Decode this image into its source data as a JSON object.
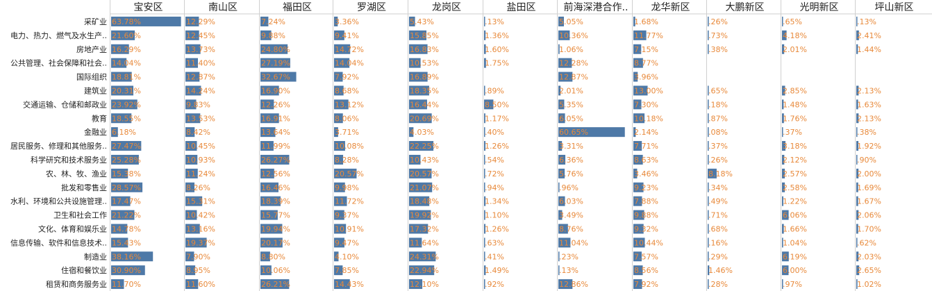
{
  "colors": {
    "bar": "#4E79A7",
    "label": "#E8893A",
    "divider": "#cfcfcf",
    "text": "#222222"
  },
  "chart_data": {
    "type": "bar",
    "orientation": "horizontal",
    "layout": "small-multiples table",
    "value_format": "percent",
    "columns": [
      "宝安区",
      "南山区",
      "福田区",
      "罗湖区",
      "龙岗区",
      "盐田区",
      "前海深港合作..",
      "龙华新区",
      "大鹏新区",
      "光明新区",
      "坪山新区"
    ],
    "categories": [
      "采矿业",
      "电力、热力、燃气及水生产..",
      "房地产业",
      "公共管理、社会保障和社会..",
      "国际组织",
      "建筑业",
      "交通运输、仓储和邮政业",
      "教育",
      "金融业",
      "居民服务、修理和其他服务..",
      "科学研究和技术服务业",
      "农、林、牧、渔业",
      "批发和零售业",
      "水利、环境和公共设施管理..",
      "卫生和社会工作",
      "文化、体育和娱乐业",
      "信息传输、软件和信息技术..",
      "制造业",
      "住宿和餐饮业",
      "租赁和商务服务业"
    ],
    "columns_data": [
      [
        63.78,
        21.6,
        16.29,
        14.04,
        18.81,
        20.31,
        23.92,
        18.55,
        6.18,
        27.47,
        25.28,
        15.38,
        28.57,
        17.47,
        21.22,
        14.78,
        15.43,
        38.16,
        30.9,
        11.7
      ],
      [
        12.29,
        12.45,
        13.73,
        11.4,
        12.87,
        14.24,
        9.83,
        13.53,
        8.42,
        10.45,
        10.93,
        11.24,
        8.26,
        15.31,
        10.42,
        13.16,
        19.37,
        7.9,
        8.95,
        11.6
      ],
      [
        7.24,
        9.88,
        24.8,
        27.19,
        32.67,
        16.9,
        12.26,
        16.91,
        13.64,
        11.99,
        26.27,
        12.56,
        16.46,
        18.39,
        15.77,
        19.94,
        20.17,
        8.8,
        10.06,
        26.21
      ],
      [
        3.36,
        9.41,
        14.72,
        14.04,
        7.92,
        8.68,
        13.12,
        8.06,
        3.71,
        10.08,
        8.28,
        20.57,
        9.98,
        11.72,
        9.37,
        10.91,
        9.47,
        4.1,
        7.85,
        14.43
      ],
      [
        5.43,
        15.85,
        16.83,
        10.53,
        16.89,
        18.35,
        16.44,
        20.69,
        4.03,
        22.25,
        10.43,
        20.57,
        21.07,
        18.48,
        19.92,
        17.32,
        11.64,
        24.31,
        22.94,
        12.1
      ],
      [
        0.13,
        1.36,
        1.6,
        1.75,
        null,
        0.89,
        8.5,
        1.17,
        0.4,
        1.26,
        0.54,
        0.72,
        0.94,
        1.34,
        1.1,
        1.26,
        0.63,
        0.41,
        1.49,
        0.92
      ],
      [
        5.05,
        10.36,
        1.06,
        12.28,
        12.87,
        2.01,
        5.35,
        6.05,
        60.65,
        3.31,
        6.36,
        5.76,
        0.96,
        6.03,
        3.49,
        8.76,
        11.04,
        0.23,
        0.13,
        12.86
      ],
      [
        1.68,
        11.77,
        7.15,
        8.77,
        3.96,
        13.0,
        7.3,
        10.18,
        2.14,
        7.71,
        8.63,
        3.46,
        9.23,
        7.88,
        9.88,
        9.32,
        10.44,
        7.57,
        8.56,
        7.92
      ],
      [
        0.26,
        0.73,
        0.38,
        null,
        null,
        0.65,
        0.18,
        0.87,
        0.08,
        0.37,
        0.26,
        8.18,
        0.34,
        0.49,
        0.71,
        0.68,
        0.16,
        0.29,
        1.46,
        0.28
      ],
      [
        0.65,
        4.18,
        2.01,
        null,
        null,
        2.85,
        1.48,
        1.76,
        0.37,
        3.18,
        2.12,
        2.57,
        2.58,
        1.22,
        6.06,
        1.66,
        1.04,
        6.19,
        6.0,
        0.97
      ],
      [
        0.13,
        2.41,
        1.44,
        null,
        null,
        2.13,
        1.63,
        2.13,
        0.38,
        1.92,
        0.9,
        2.0,
        1.69,
        1.67,
        2.06,
        1.7,
        0.62,
        2.03,
        2.65,
        1.02
      ]
    ],
    "value_labels": [
      [
        "63.78%",
        "21.60%",
        "16.29%",
        "14.04%",
        "18.81%",
        "20.31%",
        "23.92%",
        "18.55%",
        "6.18%",
        "27.47%",
        "25.28%",
        "15.38%",
        "28.57%",
        "17.47%",
        "21.22%",
        "14.78%",
        "15.43%",
        "38.16%",
        "30.90%",
        "11.70%"
      ],
      [
        "12.29%",
        "12.45%",
        "13.73%",
        "11.40%",
        "12.87%",
        "14.24%",
        "9.83%",
        "13.53%",
        "8.42%",
        "10.45%",
        "10.93%",
        "11.24%",
        "8.26%",
        "15.31%",
        "10.42%",
        "13.16%",
        "19.37%",
        "7.90%",
        "8.95%",
        "11.60%"
      ],
      [
        "7.24%",
        "9.88%",
        "24.80%",
        "27.19%",
        "32.67%",
        "16.90%",
        "12.26%",
        "16.91%",
        "13.64%",
        "11.99%",
        "26.27%",
        "12.56%",
        "16.46%",
        "18.39%",
        "15.77%",
        "19.94%",
        "20.17%",
        "8.80%",
        "10.06%",
        "26.21%"
      ],
      [
        "3.36%",
        "9.41%",
        "14.72%",
        "14.04%",
        "7.92%",
        "8.68%",
        "13.12%",
        "8.06%",
        "3.71%",
        "10.08%",
        "8.28%",
        "20.57%",
        "9.98%",
        "11.72%",
        "9.37%",
        "10.91%",
        "9.47%",
        "4.10%",
        "7.85%",
        "14.43%"
      ],
      [
        "5.43%",
        "15.85%",
        "16.83%",
        "10.53%",
        "16.89%",
        "18.35%",
        "16.44%",
        "20.69%",
        "4.03%",
        "22.25%",
        "10.43%",
        "20.57%",
        "21.07%",
        "18.48%",
        "19.92%",
        "17.32%",
        "11.64%",
        "24.31%",
        "22.94%",
        "12.10%"
      ],
      [
        ".13%",
        "1.36%",
        "1.60%",
        "1.75%",
        "",
        ".89%",
        "8.50%",
        "1.17%",
        ".40%",
        "1.26%",
        ".54%",
        ".72%",
        ".94%",
        "1.34%",
        "1.10%",
        "1.26%",
        ".63%",
        ".41%",
        "1.49%",
        ".92%"
      ],
      [
        "5.05%",
        "10.36%",
        "1.06%",
        "12.28%",
        "12.87%",
        "2.01%",
        "5.35%",
        "6.05%",
        "60.65%",
        "3.31%",
        "6.36%",
        "5.76%",
        ".96%",
        "6.03%",
        "3.49%",
        "8.76%",
        "11.04%",
        ".23%",
        ".13%",
        "12.86%"
      ],
      [
        "1.68%",
        "11.77%",
        "7.15%",
        "8.77%",
        "3.96%",
        "13.00%",
        "7.30%",
        "10.18%",
        "2.14%",
        "7.71%",
        "8.63%",
        "3.46%",
        "9.23%",
        "7.88%",
        "9.88%",
        "9.32%",
        "10.44%",
        "7.57%",
        "8.56%",
        "7.92%"
      ],
      [
        ".26%",
        ".73%",
        ".38%",
        "",
        "",
        ".65%",
        ".18%",
        ".87%",
        ".08%",
        ".37%",
        ".26%",
        "8.18%",
        ".34%",
        ".49%",
        ".71%",
        ".68%",
        ".16%",
        ".29%",
        "1.46%",
        ".28%"
      ],
      [
        ".65%",
        "4.18%",
        "2.01%",
        "",
        "",
        "2.85%",
        "1.48%",
        "1.76%",
        ".37%",
        "3.18%",
        "2.12%",
        "2.57%",
        "2.58%",
        "1.22%",
        "6.06%",
        "1.66%",
        "1.04%",
        "6.19%",
        "6.00%",
        ".97%"
      ],
      [
        ".13%",
        "2.41%",
        "1.44%",
        "",
        "",
        "2.13%",
        "1.63%",
        "2.13%",
        ".38%",
        "1.92%",
        ".90%",
        "2.00%",
        "1.69%",
        "1.67%",
        "2.06%",
        "1.70%",
        ".62%",
        "2.03%",
        "2.65%",
        "1.02%"
      ]
    ],
    "x_range": [
      0,
      64
    ],
    "title": "",
    "xlabel": "",
    "ylabel": "",
    "grid": false,
    "legend": "none"
  }
}
